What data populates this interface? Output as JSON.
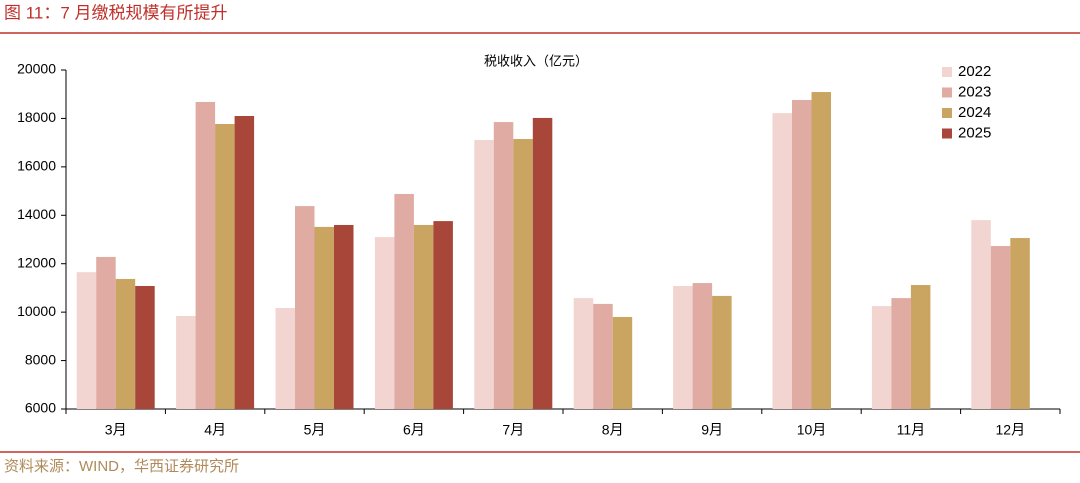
{
  "header_title": "图 11：7 月缴税规模有所提升",
  "source": "资料来源：WIND，华西证券研究所",
  "chart_data": {
    "type": "bar",
    "title": "税收收入（亿元）",
    "categories": [
      "3月",
      "4月",
      "5月",
      "6月",
      "7月",
      "8月",
      "9月",
      "10月",
      "11月",
      "12月"
    ],
    "series": [
      {
        "name": "2022",
        "color": "#f2d4d0",
        "values": [
          11650,
          9840,
          10170,
          13100,
          17110,
          10580,
          11080,
          18220,
          10250,
          13800
        ]
      },
      {
        "name": "2023",
        "color": "#e0aba2",
        "values": [
          12280,
          18680,
          14380,
          14880,
          17850,
          10340,
          11200,
          18760,
          10580,
          12730
        ]
      },
      {
        "name": "2024",
        "color": "#c9a561",
        "values": [
          11370,
          17770,
          13520,
          13600,
          17150,
          9800,
          10670,
          19090,
          11120,
          13060
        ]
      },
      {
        "name": "2025",
        "color": "#a8463a",
        "values": [
          11080,
          18100,
          13600,
          13760,
          18020,
          null,
          null,
          null,
          null,
          null
        ]
      }
    ],
    "ylim": [
      6000,
      20000
    ],
    "yticks": [
      6000,
      8000,
      10000,
      12000,
      14000,
      16000,
      18000,
      20000
    ],
    "legend": "top-right"
  }
}
